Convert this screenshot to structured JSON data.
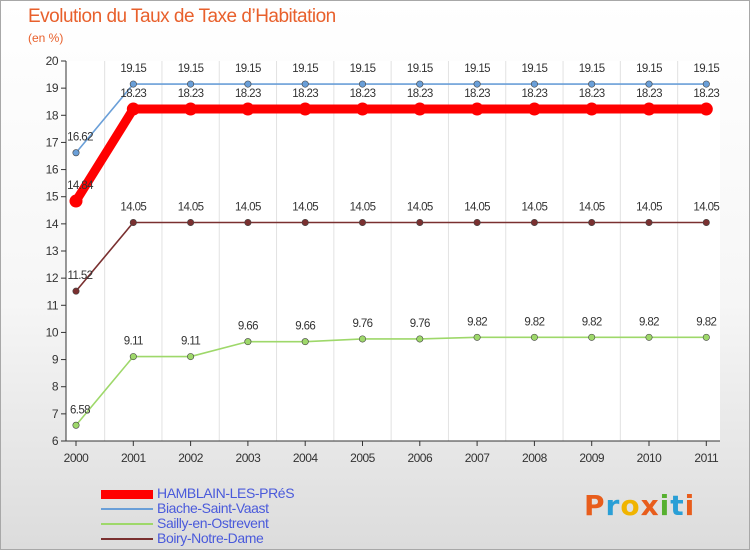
{
  "title": "Evolution du Taux de Taxe d’Habitation",
  "subtitle": "(en %)",
  "brand": "Proxiti",
  "brand_colors": [
    "#e85d1c",
    "#2a9fd6",
    "#f0b400",
    "#e85d1c",
    "#57b030",
    "#2a9fd6",
    "#e85d1c"
  ],
  "chart_data": {
    "type": "line",
    "title": "Evolution du Taux de Taxe d’Habitation",
    "ylabel": "(en %)",
    "xlabel": "",
    "x": [
      "2000",
      "2001",
      "2002",
      "2003",
      "2004",
      "2005",
      "2006",
      "2007",
      "2008",
      "2009",
      "2010",
      "2011"
    ],
    "ylim": [
      6,
      20
    ],
    "yticks": [
      "6",
      "7",
      "8",
      "9",
      "10",
      "11",
      "12",
      "13",
      "14",
      "15",
      "16",
      "17",
      "18",
      "19",
      "20"
    ],
    "legend_position": "bottom-left",
    "series": [
      {
        "name": "HAMBLAIN-LES-PRéS",
        "color": "#ff0000",
        "values": [
          14.84,
          18.23,
          18.23,
          18.23,
          18.23,
          18.23,
          18.23,
          18.23,
          18.23,
          18.23,
          18.23,
          18.23
        ],
        "labels": [
          "14.84",
          "18.23",
          "18.23",
          "18.23",
          "18.23",
          "18.23",
          "18.23",
          "18.23",
          "18.23",
          "18.23",
          "18.23",
          "18.23"
        ]
      },
      {
        "name": "Biache-Saint-Vaast",
        "color": "#6a9fd8",
        "values": [
          16.62,
          19.15,
          19.15,
          19.15,
          19.15,
          19.15,
          19.15,
          19.15,
          19.15,
          19.15,
          19.15,
          19.15
        ],
        "labels": [
          "16.62",
          "19.15",
          "19.15",
          "19.15",
          "19.15",
          "19.15",
          "19.15",
          "19.15",
          "19.15",
          "19.15",
          "19.15",
          "19.15"
        ]
      },
      {
        "name": "Sailly-en-Ostrevent",
        "color": "#9ed86a",
        "values": [
          6.58,
          9.11,
          9.11,
          9.66,
          9.66,
          9.76,
          9.76,
          9.82,
          9.82,
          9.82,
          9.82,
          9.82
        ],
        "labels": [
          "6.58",
          "9.11",
          "9.11",
          "9.66",
          "9.66",
          "9.76",
          "9.76",
          "9.82",
          "9.82",
          "9.82",
          "9.82",
          "9.82"
        ]
      },
      {
        "name": "Boiry-Notre-Dame",
        "color": "#7a3030",
        "values": [
          11.52,
          14.05,
          14.05,
          14.05,
          14.05,
          14.05,
          14.05,
          14.05,
          14.05,
          14.05,
          14.05,
          14.05
        ],
        "labels": [
          "11.52",
          "14.05",
          "14.05",
          "14.05",
          "14.05",
          "14.05",
          "14.05",
          "14.05",
          "14.05",
          "14.05",
          "14.05",
          "14.05"
        ]
      }
    ]
  }
}
